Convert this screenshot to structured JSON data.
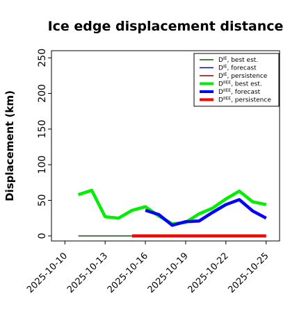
{
  "chart_data": {
    "type": "line",
    "title": "Ice edge displacement distance",
    "ylabel": "Displacement (km)",
    "xlabel": "",
    "ylim": [
      -7,
      260
    ],
    "yticks": [
      0,
      50,
      100,
      150,
      200,
      250
    ],
    "x_range": [
      "2025-10-09",
      "2025-10-26"
    ],
    "xticks": [
      "2025-10-10",
      "2025-10-13",
      "2025-10-16",
      "2025-10-19",
      "2025-10-22",
      "2025-10-25"
    ],
    "highlighted_tick": "2025-10-16",
    "highlight_color": "#228b22",
    "grid": false,
    "legend_position": "top-right",
    "series": [
      {
        "name": "D^IE, best est.",
        "color": "#006400",
        "width": "thin",
        "x": [
          "2025-10-11",
          "2025-10-12",
          "2025-10-13",
          "2025-10-14",
          "2025-10-15"
        ],
        "values": [
          0,
          0,
          0,
          0,
          0
        ]
      },
      {
        "name": "D^IE, forecast",
        "color": "#0000cd",
        "width": "thin",
        "x": [],
        "values": []
      },
      {
        "name": "D^IE, persistence",
        "color": "#8b0000",
        "width": "thin",
        "x": [],
        "values": []
      },
      {
        "name": "D^IIEE, best est.",
        "color": "#00ee00",
        "width": "thick",
        "x": [
          "2025-10-11",
          "2025-10-12",
          "2025-10-13",
          "2025-10-14",
          "2025-10-15",
          "2025-10-16",
          "2025-10-17",
          "2025-10-18",
          "2025-10-19",
          "2025-10-20",
          "2025-10-21",
          "2025-10-22",
          "2025-10-23",
          "2025-10-24",
          "2025-10-25"
        ],
        "values": [
          58,
          64,
          27,
          25,
          36,
          41,
          28,
          17,
          19,
          31,
          39,
          52,
          63,
          48,
          44
        ]
      },
      {
        "name": "D^IIEE, forecast",
        "color": "#0000ff",
        "width": "thick",
        "x": [
          "2025-10-16",
          "2025-10-17",
          "2025-10-18",
          "2025-10-19",
          "2025-10-20",
          "2025-10-21",
          "2025-10-22",
          "2025-10-23",
          "2025-10-24",
          "2025-10-25"
        ],
        "values": [
          36,
          30,
          15,
          20,
          21,
          33,
          44,
          51,
          35,
          25
        ]
      },
      {
        "name": "D^IIEE, persistence",
        "color": "#ff0000",
        "width": "thick",
        "x": [
          "2025-10-15",
          "2025-10-16",
          "2025-10-17",
          "2025-10-18",
          "2025-10-19",
          "2025-10-20",
          "2025-10-21",
          "2025-10-22",
          "2025-10-23",
          "2025-10-24",
          "2025-10-25"
        ],
        "values": [
          0,
          0,
          0,
          0,
          0,
          0,
          0,
          0,
          0,
          0,
          0
        ]
      }
    ],
    "legend": [
      {
        "base": "D",
        "sup": "IE",
        "suffix": ", best est."
      },
      {
        "base": "D",
        "sup": "IE",
        "suffix": ", forecast"
      },
      {
        "base": "D",
        "sup": "IE",
        "suffix": ", persistence"
      },
      {
        "base": "D",
        "sup": "IIEE",
        "suffix": ", best est."
      },
      {
        "base": "D",
        "sup": "IIEE",
        "suffix": ", forecast"
      },
      {
        "base": "D",
        "sup": "IIEE",
        "suffix": ", persistence"
      }
    ]
  }
}
